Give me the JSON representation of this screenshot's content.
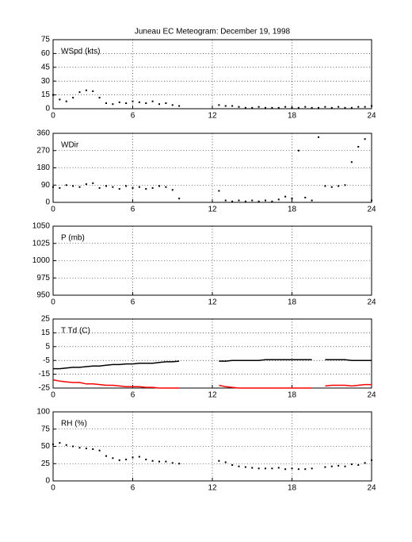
{
  "chart_data": [
    {
      "type": "scatter",
      "title": "Juneau EC Meteogram:  December 19, 1998",
      "label": "WSpd (kts)",
      "x": [
        0,
        0.5,
        1,
        1.5,
        2,
        2.5,
        3,
        3.5,
        4,
        4.5,
        5,
        5.5,
        6,
        6.5,
        7,
        7.5,
        8,
        8.5,
        9,
        9.5,
        10,
        10.5,
        11,
        11.5,
        12,
        12.5,
        13,
        13.5,
        14,
        14.5,
        15,
        15.5,
        16,
        16.5,
        17,
        17.5,
        18,
        18.5,
        19,
        19.5,
        20,
        20.5,
        21,
        21.5,
        22,
        22.5,
        23,
        23.5,
        24
      ],
      "series": [
        {
          "color": "#000000",
          "values": [
            15,
            10,
            8,
            12,
            18,
            20,
            19,
            12,
            6,
            5,
            7,
            6,
            8,
            7,
            6,
            8,
            5,
            6,
            4,
            3,
            null,
            null,
            null,
            null,
            null,
            4,
            3,
            3,
            2,
            1,
            1,
            2,
            1,
            1,
            1,
            2,
            1,
            1,
            2,
            1,
            1,
            2,
            1,
            2,
            1,
            1,
            2,
            2,
            3
          ]
        }
      ],
      "xlim": [
        0,
        24
      ],
      "xticks": [
        0,
        6,
        12,
        18,
        24
      ],
      "ylim": [
        0,
        75
      ],
      "yticks": [
        0,
        15,
        30,
        45,
        60,
        75
      ],
      "grid": true
    },
    {
      "type": "scatter",
      "label": "WDir",
      "x": [
        0,
        0.5,
        1,
        1.5,
        2,
        2.5,
        3,
        3.5,
        4,
        4.5,
        5,
        5.5,
        6,
        6.5,
        7,
        7.5,
        8,
        8.5,
        9,
        9.5,
        10,
        10.5,
        11,
        11.5,
        12,
        12.5,
        13,
        13.5,
        14,
        14.5,
        15,
        15.5,
        16,
        16.5,
        17,
        17.5,
        18,
        18.5,
        19,
        19.5,
        20,
        20.5,
        21,
        21.5,
        22,
        22.5,
        23,
        23.5,
        24
      ],
      "series": [
        {
          "color": "#000000",
          "values": [
            80,
            75,
            90,
            85,
            80,
            95,
            100,
            75,
            85,
            80,
            70,
            85,
            75,
            80,
            70,
            75,
            85,
            80,
            65,
            20,
            null,
            null,
            null,
            null,
            null,
            60,
            10,
            5,
            10,
            5,
            10,
            5,
            10,
            5,
            15,
            30,
            20,
            270,
            25,
            10,
            340,
            85,
            80,
            85,
            90,
            210,
            290,
            330,
            10
          ]
        }
      ],
      "xlim": [
        0,
        24
      ],
      "xticks": [
        0,
        6,
        12,
        18,
        24
      ],
      "ylim": [
        0,
        360
      ],
      "yticks": [
        0,
        90,
        180,
        270,
        360
      ],
      "grid": true
    },
    {
      "type": "scatter",
      "label": "P (mb)",
      "xlim": [
        0,
        24
      ],
      "xticks": [
        0,
        6,
        12,
        18,
        24
      ],
      "ylim": [
        950,
        1050
      ],
      "yticks": [
        950,
        975,
        1000,
        1025,
        1050
      ],
      "grid": true
    },
    {
      "type": "line",
      "label": "T Td (C)",
      "x": [
        0,
        0.5,
        1,
        1.5,
        2,
        2.5,
        3,
        3.5,
        4,
        4.5,
        5,
        5.5,
        6,
        6.5,
        7,
        7.5,
        8,
        8.5,
        9,
        9.5,
        10,
        10.5,
        11,
        11.5,
        12,
        12.5,
        13,
        13.5,
        14,
        14.5,
        15,
        15.5,
        16,
        16.5,
        17,
        17.5,
        18,
        18.5,
        19,
        19.5,
        20,
        20.5,
        21,
        21.5,
        22,
        22.5,
        23,
        23.5,
        24
      ],
      "series": [
        {
          "color": "#000000",
          "values": [
            -11,
            -11,
            -10.5,
            -10,
            -10,
            -9.5,
            -9,
            -9,
            -8.5,
            -8,
            -8,
            -7.5,
            -7.5,
            -7,
            -7,
            -7,
            -6.5,
            -6,
            -6,
            -5.5,
            null,
            null,
            null,
            null,
            null,
            -5.5,
            -5.5,
            -5,
            -5,
            -5,
            -5,
            -5,
            -4.5,
            -4.5,
            -4.5,
            -4.5,
            -4.5,
            -4.5,
            -4.5,
            -4.5,
            null,
            -4.5,
            -4.5,
            -4.5,
            -4.5,
            -5,
            -5,
            -5,
            -5
          ]
        },
        {
          "color": "#ff0000",
          "values": [
            -19,
            -20,
            -20.5,
            -21,
            -21,
            -22,
            -22,
            -22.5,
            -23,
            -23,
            -23.5,
            -24,
            -24,
            -24,
            -24.5,
            -24.5,
            -25,
            -25,
            -25,
            -25,
            null,
            null,
            null,
            null,
            null,
            -23,
            -24,
            -24.5,
            -25,
            -25,
            -25,
            -25,
            -25,
            -25,
            -25,
            -25,
            -25,
            -25,
            -25,
            -25,
            null,
            -23.5,
            -23,
            -23,
            -23,
            -23.5,
            -23,
            -22.5,
            -22.5
          ]
        }
      ],
      "xlim": [
        0,
        24
      ],
      "xticks": [
        0,
        6,
        12,
        18,
        24
      ],
      "ylim": [
        -25,
        25
      ],
      "yticks": [
        -25,
        -15,
        -5,
        5,
        15,
        25
      ],
      "grid": true
    },
    {
      "type": "scatter",
      "label": "RH (%)",
      "x": [
        0,
        0.5,
        1,
        1.5,
        2,
        2.5,
        3,
        3.5,
        4,
        4.5,
        5,
        5.5,
        6,
        6.5,
        7,
        7.5,
        8,
        8.5,
        9,
        9.5,
        10,
        10.5,
        11,
        11.5,
        12,
        12.5,
        13,
        13.5,
        14,
        14.5,
        15,
        15.5,
        16,
        16.5,
        17,
        17.5,
        18,
        18.5,
        19,
        19.5,
        20,
        20.5,
        21,
        21.5,
        22,
        22.5,
        23,
        23.5,
        24
      ],
      "series": [
        {
          "color": "#000000",
          "values": [
            53,
            55,
            52,
            50,
            48,
            47,
            46,
            44,
            36,
            33,
            30,
            31,
            34,
            35,
            31,
            29,
            28,
            28,
            26,
            25,
            null,
            null,
            null,
            null,
            null,
            29,
            27,
            23,
            21,
            20,
            19,
            18,
            18,
            18,
            19,
            17,
            18,
            17,
            17,
            18,
            null,
            20,
            21,
            22,
            21,
            24,
            23,
            26,
            30
          ]
        }
      ],
      "xlim": [
        0,
        24
      ],
      "xticks": [
        0,
        6,
        12,
        18,
        24
      ],
      "ylim": [
        0,
        100
      ],
      "yticks": [
        0,
        25,
        50,
        75,
        100
      ],
      "grid": true
    }
  ]
}
